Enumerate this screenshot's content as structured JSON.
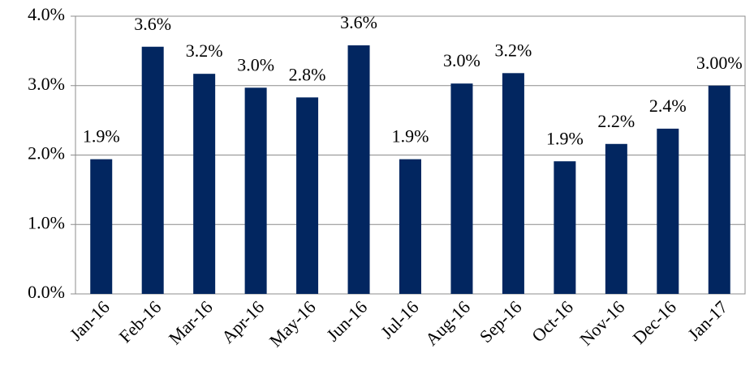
{
  "chart_data": {
    "type": "bar",
    "categories": [
      "Jan-16",
      "Feb-16",
      "Mar-16",
      "Apr-16",
      "May-16",
      "Jun-16",
      "Jul-16",
      "Aug-16",
      "Sep-16",
      "Oct-16",
      "Nov-16",
      "Dec-16",
      "Jan-17"
    ],
    "values": [
      1.94,
      3.56,
      3.17,
      2.97,
      2.83,
      3.58,
      1.94,
      3.03,
      3.18,
      1.91,
      2.16,
      2.38,
      3.0
    ],
    "value_labels": [
      "1.9%",
      "3.6%",
      "3.2%",
      "3.0%",
      "2.8%",
      "3.6%",
      "1.9%",
      "3.0%",
      "3.2%",
      "1.9%",
      "2.2%",
      "2.4%",
      "3.00%"
    ],
    "color": "#022660",
    "ylim": [
      0,
      4
    ],
    "yticks": [
      {
        "value": 0,
        "label": "0.0%"
      },
      {
        "value": 1,
        "label": "1.0%"
      },
      {
        "value": 2,
        "label": "2.0%"
      },
      {
        "value": 3,
        "label": "3.0%"
      },
      {
        "value": 4,
        "label": "4.0%"
      }
    ],
    "grid": true
  }
}
